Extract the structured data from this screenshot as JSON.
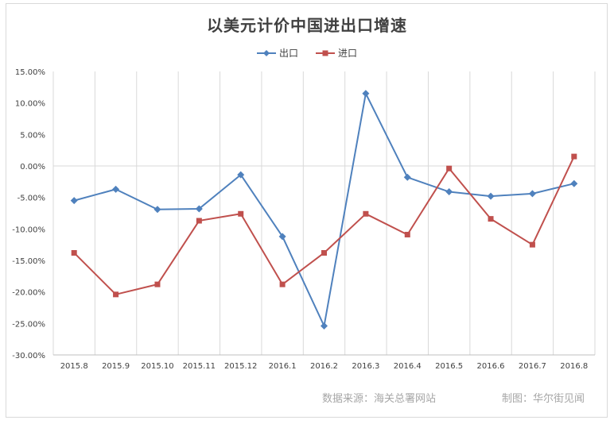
{
  "chart_data": {
    "type": "line",
    "title": "以美元计价中国进出口增速",
    "categories": [
      "2015.8",
      "2015.9",
      "2015.10",
      "2015.11",
      "2015.12",
      "2016.1",
      "2016.2",
      "2016.3",
      "2016.4",
      "2016.5",
      "2016.6",
      "2016.7",
      "2016.8"
    ],
    "yticks": [
      "15.00%",
      "10.00%",
      "5.00%",
      "0.00%",
      "-5.00%",
      "-10.00%",
      "-15.00%",
      "-20.00%",
      "-25.00%",
      "-30.00%"
    ],
    "ylim": [
      -30,
      15
    ],
    "grid": "vertical",
    "legend_position": "top",
    "series": [
      {
        "name": "出口",
        "color": "#4f81bd",
        "marker": "diamond",
        "values": [
          -5.5,
          -3.7,
          -6.9,
          -6.8,
          -1.4,
          -11.2,
          -25.4,
          11.5,
          -1.8,
          -4.1,
          -4.8,
          -4.4,
          -2.8
        ]
      },
      {
        "name": "进口",
        "color": "#c0504d",
        "marker": "square",
        "values": [
          -13.8,
          -20.4,
          -18.8,
          -8.7,
          -7.6,
          -18.8,
          -13.8,
          -7.6,
          -10.9,
          -0.4,
          -8.4,
          -12.5,
          1.5
        ]
      }
    ]
  },
  "footer": {
    "source": "数据来源：海关总署网站",
    "credit": "制图：华尔街见闻"
  }
}
